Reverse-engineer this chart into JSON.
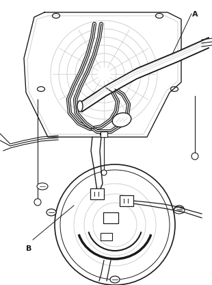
{
  "background_color": "#ffffff",
  "line_color": "#1a1a1a",
  "light_line_color": "#c8c8c8",
  "medium_line_color": "#888888",
  "label_A": "A",
  "label_B": "B",
  "figsize": [
    3.1,
    4.16
  ],
  "dpi": 100
}
